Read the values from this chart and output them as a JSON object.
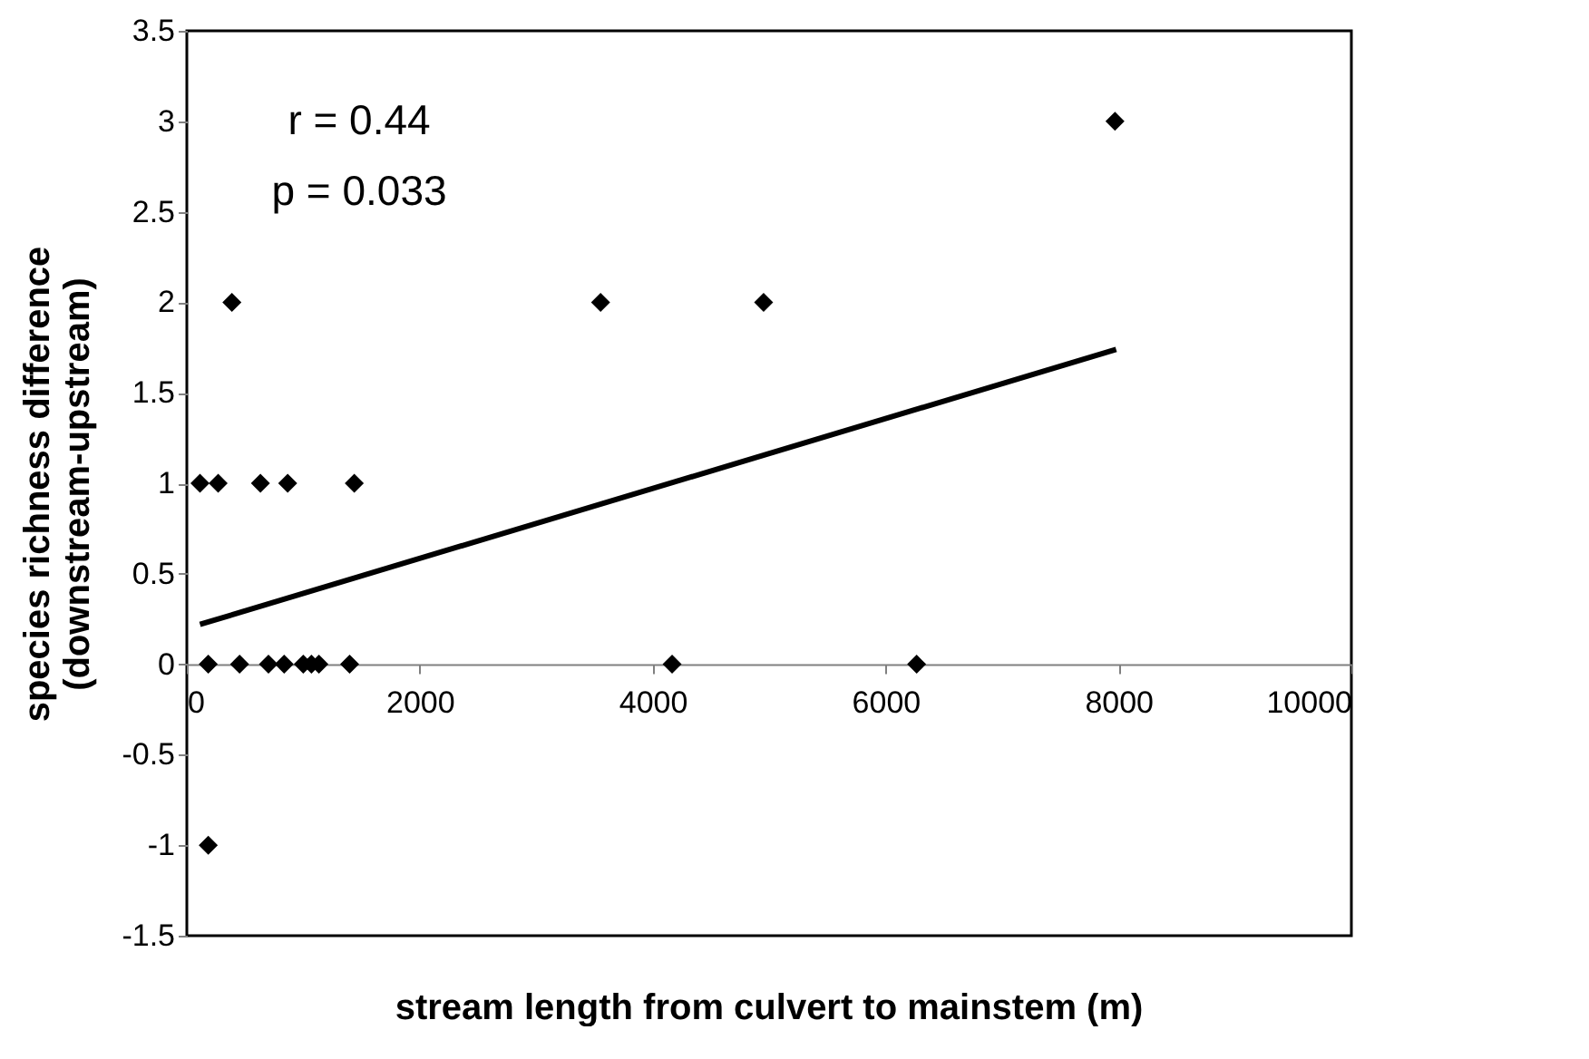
{
  "chart_data": {
    "type": "scatter",
    "xlabel": "stream length from culvert to mainstem (m)",
    "ylabel": "species richness difference\n(downstream-upstream)",
    "annotations": [
      "r = 0.44",
      "p = 0.033"
    ],
    "series": [
      {
        "color": "#000000",
        "marker": "diamond",
        "x": [
          113,
          269,
          632,
          866,
          1438,
          184,
          453,
          701,
          836,
          1000,
          1070,
          1134,
          1398,
          4167,
          6267,
          387,
          3553,
          4953,
          7970,
          184
        ],
        "values": [
          1,
          1,
          1,
          1,
          1,
          0,
          0,
          0,
          0,
          0,
          0,
          0,
          0,
          0,
          0,
          2,
          2,
          2,
          3,
          -1
        ]
      },
      {
        "type": "line",
        "color": "#000000",
        "x": [
          113,
          7980
        ],
        "values": [
          0.22,
          1.74
        ]
      }
    ],
    "xlim": [
      0,
      10000
    ],
    "xticks": [
      0,
      2000,
      4000,
      6000,
      8000,
      10000
    ],
    "ylim": [
      -1.5,
      3.5
    ],
    "yticks": [
      -1.5,
      -1,
      -0.5,
      0,
      0.5,
      1,
      1.5,
      2,
      2.5,
      3,
      3.5
    ],
    "grid": false
  }
}
